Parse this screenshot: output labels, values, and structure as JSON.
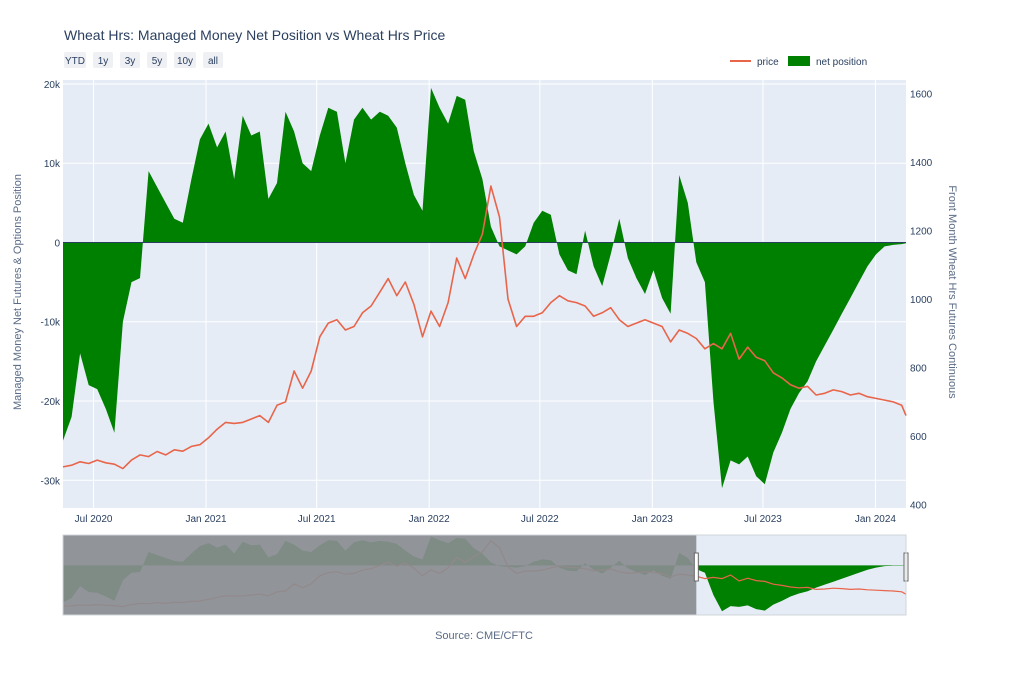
{
  "chart_data": {
    "type": "area",
    "title": "Wheat Hrs: Managed Money Net Position vs Wheat Hrs Price",
    "range_buttons": [
      "YTD",
      "1y",
      "3y",
      "5y",
      "10y",
      "all"
    ],
    "y_left_label": "Managed Money Net Futures & Options Position",
    "y_right_label": "Front Month Wheat Hrs Futures Continuous",
    "y_left_ticks": [
      "20k",
      "10k",
      "0",
      "-10k",
      "-20k",
      "-30k"
    ],
    "y_left_values": [
      20000,
      10000,
      0,
      -10000,
      -20000,
      -30000
    ],
    "y_right_ticks": [
      "1600",
      "1400",
      "1200",
      "1000",
      "800",
      "600",
      "400"
    ],
    "y_right_values": [
      1600,
      1400,
      1200,
      1000,
      800,
      600,
      400
    ],
    "x_tick_labels": [
      "Jul 2020",
      "Jan 2021",
      "Jul 2021",
      "Jan 2022",
      "Jul 2022",
      "Jan 2023",
      "Jul 2023",
      "Jan 2024"
    ],
    "x_tick_dates": [
      "2020-07-01",
      "2021-01-01",
      "2021-07-01",
      "2022-01-01",
      "2022-07-01",
      "2023-01-01",
      "2023-07-01",
      "2024-01-01"
    ],
    "x_range": [
      "2020-05-12",
      "2024-02-20"
    ],
    "ylim_left": [
      -33500,
      20500
    ],
    "ylim_right": [
      390,
      1640
    ],
    "legend": {
      "position": "top-right",
      "items": [
        "price",
        "net position"
      ]
    },
    "colors": {
      "price": "#e8654a",
      "net_position": "#008000",
      "slider_overlay": "#8a8c90"
    },
    "source": "Source: CME/CFTC",
    "net_position": {
      "dates": [
        "2020-05-12",
        "2020-05-26",
        "2020-06-09",
        "2020-06-23",
        "2020-07-07",
        "2020-07-21",
        "2020-08-04",
        "2020-08-18",
        "2020-09-01",
        "2020-09-15",
        "2020-09-29",
        "2020-10-13",
        "2020-10-27",
        "2020-11-10",
        "2020-11-24",
        "2020-12-08",
        "2020-12-22",
        "2021-01-05",
        "2021-01-19",
        "2021-02-02",
        "2021-02-16",
        "2021-03-02",
        "2021-03-16",
        "2021-03-30",
        "2021-04-13",
        "2021-04-27",
        "2021-05-11",
        "2021-05-25",
        "2021-06-08",
        "2021-06-22",
        "2021-07-06",
        "2021-07-20",
        "2021-08-03",
        "2021-08-17",
        "2021-08-31",
        "2021-09-14",
        "2021-09-28",
        "2021-10-12",
        "2021-10-26",
        "2021-11-09",
        "2021-11-23",
        "2021-12-07",
        "2021-12-21",
        "2022-01-04",
        "2022-01-18",
        "2022-02-01",
        "2022-02-15",
        "2022-03-01",
        "2022-03-15",
        "2022-03-29",
        "2022-04-12",
        "2022-04-26",
        "2022-05-10",
        "2022-05-24",
        "2022-06-07",
        "2022-06-21",
        "2022-07-05",
        "2022-07-19",
        "2022-08-02",
        "2022-08-16",
        "2022-08-30",
        "2022-09-13",
        "2022-09-27",
        "2022-10-11",
        "2022-10-25",
        "2022-11-08",
        "2022-11-22",
        "2022-12-06",
        "2022-12-20",
        "2023-01-03",
        "2023-01-17",
        "2023-01-31",
        "2023-02-14",
        "2023-02-28",
        "2023-03-14",
        "2023-03-28",
        "2023-04-11",
        "2023-04-25",
        "2023-05-09",
        "2023-05-23",
        "2023-06-06",
        "2023-06-20",
        "2023-07-04",
        "2023-07-18",
        "2023-08-01",
        "2023-08-15",
        "2023-08-29",
        "2023-09-12",
        "2023-09-26",
        "2023-10-10",
        "2023-10-24",
        "2023-11-07",
        "2023-11-21",
        "2023-12-05",
        "2023-12-19",
        "2024-01-02",
        "2024-01-16",
        "2024-01-30",
        "2024-02-13",
        "2024-02-20"
      ],
      "values": [
        -25000,
        -22000,
        -14000,
        -18000,
        -18500,
        -21000,
        -24000,
        -10000,
        -5000,
        -4500,
        9000,
        7000,
        5000,
        3000,
        2500,
        8000,
        13000,
        15000,
        12000,
        14000,
        8000,
        16000,
        13500,
        14000,
        5500,
        7500,
        16500,
        14000,
        10000,
        9000,
        13500,
        17000,
        16500,
        10000,
        15500,
        17000,
        15500,
        16500,
        16000,
        14500,
        10000,
        6000,
        4000,
        19500,
        17000,
        15000,
        18500,
        18000,
        11500,
        8000,
        2000,
        -500,
        -1000,
        -1500,
        -500,
        2500,
        4000,
        3500,
        -1500,
        -3500,
        -4000,
        1500,
        -3000,
        -5500,
        -1500,
        3000,
        -2000,
        -4500,
        -6500,
        -3500,
        -7000,
        -9000,
        8500,
        5000,
        -2500,
        -5000,
        -20000,
        -31000,
        -27500,
        -28000,
        -27000,
        -29500,
        -30500,
        -26500,
        -24000,
        -21000,
        -19000,
        -17500,
        -15000,
        -13000,
        -11000,
        -9000,
        -7000,
        -5000,
        -3000,
        -1500,
        -500,
        -300,
        -200,
        -100
      ]
    },
    "price": {
      "dates": [
        "2020-05-12",
        "2020-05-26",
        "2020-06-09",
        "2020-06-23",
        "2020-07-07",
        "2020-07-21",
        "2020-08-04",
        "2020-08-18",
        "2020-09-01",
        "2020-09-15",
        "2020-09-29",
        "2020-10-13",
        "2020-10-27",
        "2020-11-10",
        "2020-11-24",
        "2020-12-08",
        "2020-12-22",
        "2021-01-05",
        "2021-01-19",
        "2021-02-02",
        "2021-02-16",
        "2021-03-02",
        "2021-03-16",
        "2021-03-30",
        "2021-04-13",
        "2021-04-27",
        "2021-05-11",
        "2021-05-25",
        "2021-06-08",
        "2021-06-22",
        "2021-07-06",
        "2021-07-20",
        "2021-08-03",
        "2021-08-17",
        "2021-08-31",
        "2021-09-14",
        "2021-09-28",
        "2021-10-12",
        "2021-10-26",
        "2021-11-09",
        "2021-11-23",
        "2021-12-07",
        "2021-12-21",
        "2022-01-04",
        "2022-01-18",
        "2022-02-01",
        "2022-02-15",
        "2022-03-01",
        "2022-03-15",
        "2022-03-29",
        "2022-04-12",
        "2022-04-26",
        "2022-05-10",
        "2022-05-24",
        "2022-06-07",
        "2022-06-21",
        "2022-07-05",
        "2022-07-19",
        "2022-08-02",
        "2022-08-16",
        "2022-08-30",
        "2022-09-13",
        "2022-09-27",
        "2022-10-11",
        "2022-10-25",
        "2022-11-08",
        "2022-11-22",
        "2022-12-06",
        "2022-12-20",
        "2023-01-03",
        "2023-01-17",
        "2023-01-31",
        "2023-02-14",
        "2023-02-28",
        "2023-03-14",
        "2023-03-28",
        "2023-04-11",
        "2023-04-25",
        "2023-05-09",
        "2023-05-23",
        "2023-06-06",
        "2023-06-20",
        "2023-07-04",
        "2023-07-18",
        "2023-08-01",
        "2023-08-15",
        "2023-08-29",
        "2023-09-12",
        "2023-09-26",
        "2023-10-10",
        "2023-10-24",
        "2023-11-07",
        "2023-11-21",
        "2023-12-05",
        "2023-12-19",
        "2024-01-02",
        "2024-01-16",
        "2024-01-30",
        "2024-02-13",
        "2024-02-20"
      ],
      "values": [
        510,
        515,
        525,
        520,
        530,
        522,
        518,
        505,
        530,
        545,
        540,
        555,
        545,
        560,
        556,
        570,
        575,
        595,
        620,
        640,
        637,
        640,
        650,
        660,
        640,
        690,
        700,
        790,
        740,
        790,
        890,
        930,
        940,
        910,
        920,
        960,
        980,
        1020,
        1060,
        1010,
        1050,
        985,
        890,
        965,
        920,
        990,
        1120,
        1060,
        1130,
        1190,
        1330,
        1240,
        1000,
        920,
        950,
        950,
        960,
        990,
        1010,
        995,
        990,
        980,
        950,
        960,
        975,
        940,
        920,
        930,
        940,
        930,
        920,
        875,
        910,
        900,
        885,
        855,
        870,
        855,
        900,
        825,
        860,
        830,
        820,
        785,
        770,
        750,
        740,
        745,
        720,
        725,
        735,
        730,
        720,
        725,
        715,
        710,
        705,
        700,
        690,
        660
      ]
    },
    "slider_range": [
      "2023-03-14",
      "2024-02-20"
    ]
  }
}
